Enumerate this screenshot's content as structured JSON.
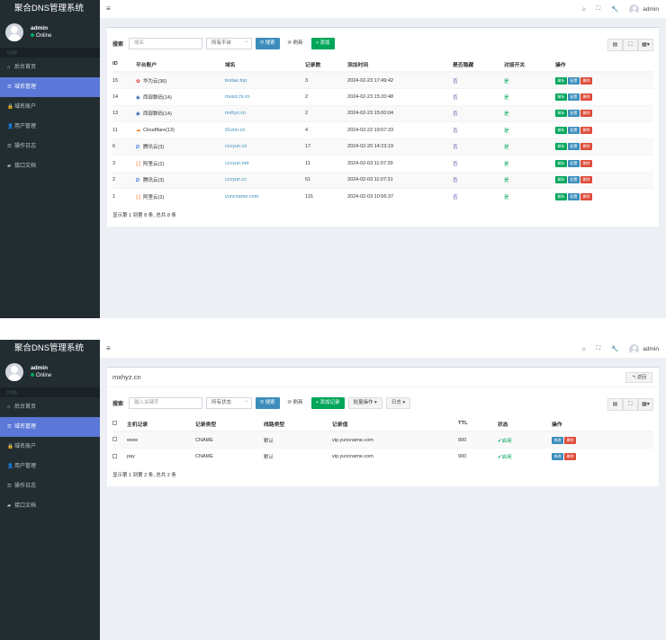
{
  "app": {
    "logo": "聚合DNS管理系统",
    "user": "admin",
    "status": "Online",
    "nav_header": "主导航",
    "nav": [
      {
        "label": "后台首页",
        "icon": "home-icon",
        "glyph": "⌂"
      },
      {
        "label": "域名管理",
        "icon": "list-icon",
        "glyph": "☰"
      },
      {
        "label": "域名账户",
        "icon": "lock-icon",
        "glyph": "🔒"
      },
      {
        "label": "用户管理",
        "icon": "user-icon",
        "glyph": "👤"
      },
      {
        "label": "操作日志",
        "icon": "list-icon",
        "glyph": "☰"
      },
      {
        "label": "接口文档",
        "icon": "book-icon",
        "glyph": "▰"
      }
    ],
    "topbar": {
      "menu": "≡",
      "home": "⌂",
      "fullscreen": "⛶",
      "wrench": "🔧",
      "admin": "admin"
    }
  },
  "domains_page": {
    "search_label": "搜索",
    "search_placeholder": "域名",
    "platform_select": "所有平台",
    "search_btn": "搜索",
    "refresh_btn": "刷新",
    "add_btn": "添加",
    "columns": [
      "ID",
      "平台账户",
      "域名",
      "记录数",
      "添加时间",
      "是否隐藏",
      "对接开关",
      "操作"
    ],
    "rows": [
      {
        "id": "15",
        "platform": "华为云(36)",
        "ptype": "huawei",
        "domain": "testae.top",
        "records": "3",
        "time": "2024-02-23 17:49:42",
        "hidden": "否",
        "enabled": "是"
      },
      {
        "id": "14",
        "platform": "西部数码(14)",
        "ptype": "west",
        "domain": "music.hi.cn",
        "records": "2",
        "time": "2024-02-23 15:20:48",
        "hidden": "否",
        "enabled": "是"
      },
      {
        "id": "13",
        "platform": "西部数码(14)",
        "ptype": "west",
        "domain": "mxhyz.cn",
        "records": "2",
        "time": "2024-02-23 15:00:04",
        "hidden": "否",
        "enabled": "是"
      },
      {
        "id": "11",
        "platform": "Cloudflare(13)",
        "ptype": "cf",
        "domain": "91sho.cn",
        "records": "4",
        "time": "2024-02-22 19:07:33",
        "hidden": "否",
        "enabled": "是"
      },
      {
        "id": "6",
        "platform": "腾讯云(3)",
        "ptype": "dnspod",
        "domain": "cccyun.cn",
        "records": "17",
        "time": "2024-02-20 14:23:19",
        "hidden": "否",
        "enabled": "是"
      },
      {
        "id": "3",
        "platform": "阿里云(2)",
        "ptype": "ali",
        "domain": "cccyun.net",
        "records": "11",
        "time": "2024-02-03 11:07:39",
        "hidden": "否",
        "enabled": "是"
      },
      {
        "id": "2",
        "platform": "腾讯云(3)",
        "ptype": "dnspod",
        "domain": "cccyun.cc",
        "records": "51",
        "time": "2024-02-03 11:07:31",
        "hidden": "否",
        "enabled": "是"
      },
      {
        "id": "1",
        "platform": "阿里云(2)",
        "ptype": "ali",
        "domain": "yuncname.com",
        "records": "131",
        "time": "2024-02-03 10:56:37",
        "hidden": "否",
        "enabled": "是"
      }
    ],
    "action_labels": [
      "解析",
      "配置",
      "删除"
    ],
    "footer": "显示第 1 到第 8 条, 总共 8 条"
  },
  "records_page": {
    "domain_title": "mxhyz.cn",
    "back_btn": "返回",
    "search_label": "搜索",
    "keyword_placeholder": "输入关键字",
    "status_select": "所有状态",
    "search_btn": "搜索",
    "refresh_btn": "刷新",
    "add_btn": "添加记录",
    "batch_btn": "批量操作",
    "log_btn": "日志",
    "columns": [
      "主机记录",
      "记录类型",
      "线路类型",
      "记录值",
      "TTL",
      "状态",
      "操作"
    ],
    "rows": [
      {
        "host": "www",
        "type": "CNAME",
        "line": "默认",
        "value": "vip.yuncname.com",
        "ttl": "900",
        "status": "启用"
      },
      {
        "host": "pay",
        "type": "CNAME",
        "line": "默认",
        "value": "vip.yuncname.com",
        "ttl": "900",
        "status": "启用"
      }
    ],
    "action_labels": [
      "修改",
      "删除"
    ],
    "footer": "显示第 1 到第 2 条, 总共 2 条"
  }
}
